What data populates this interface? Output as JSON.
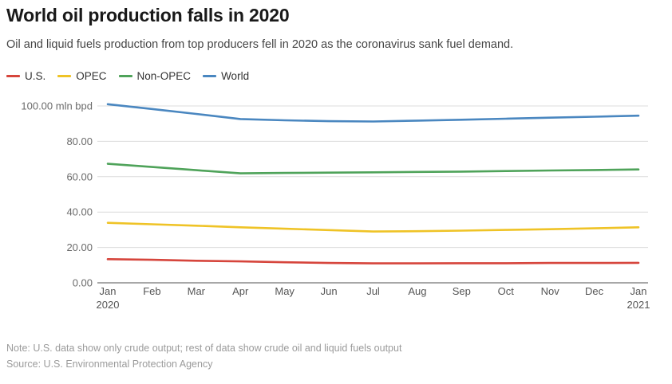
{
  "header": {
    "title": "World oil production falls in 2020",
    "subtitle": "Oil and liquid fuels production from top producers fell in 2020 as the coronavirus sank fuel demand."
  },
  "legend": [
    {
      "label": "U.S.",
      "color": "#d6453c"
    },
    {
      "label": "OPEC",
      "color": "#efc326"
    },
    {
      "label": "Non-OPEC",
      "color": "#4fa35a"
    },
    {
      "label": "World",
      "color": "#4a87c0"
    }
  ],
  "chart_data": {
    "type": "line",
    "title": "World oil production falls in 2020",
    "unit": "mln bpd",
    "categories": [
      "Jan",
      "Feb",
      "Mar",
      "Apr",
      "May",
      "Jun",
      "Jul",
      "Aug",
      "Sep",
      "Oct",
      "Nov",
      "Dec",
      "Jan"
    ],
    "year_labels": [
      "2020",
      "",
      "",
      "",
      "",
      "",
      "",
      "",
      "",
      "",
      "",
      "",
      "2021"
    ],
    "series": [
      {
        "name": "U.S.",
        "color": "#d6453c",
        "values": [
          13.4,
          13.0,
          12.5,
          12.1,
          11.6,
          11.2,
          11.0,
          11.0,
          11.1,
          11.1,
          11.2,
          11.2,
          11.3
        ]
      },
      {
        "name": "OPEC",
        "color": "#efc326",
        "values": [
          33.9,
          33.1,
          32.3,
          31.4,
          30.6,
          29.8,
          29.0,
          29.2,
          29.5,
          29.9,
          30.3,
          30.8,
          31.4
        ]
      },
      {
        "name": "Non-OPEC",
        "color": "#4fa35a",
        "values": [
          67.3,
          65.5,
          63.7,
          61.9,
          62.1,
          62.3,
          62.5,
          62.7,
          62.9,
          63.2,
          63.5,
          63.8,
          64.1
        ]
      },
      {
        "name": "World",
        "color": "#4a87c0",
        "values": [
          101.0,
          98.3,
          95.5,
          92.6,
          91.9,
          91.4,
          91.2,
          91.7,
          92.2,
          92.8,
          93.4,
          93.9,
          94.5
        ]
      }
    ],
    "y_ticks": [
      0,
      20,
      40,
      60,
      80,
      100
    ],
    "y_tick_labels": [
      "0.00",
      "20.00",
      "40.00",
      "60.00",
      "80.00",
      "100.00 mln bpd"
    ],
    "ylim": [
      0,
      105
    ],
    "grid": true,
    "legend_position": "top"
  },
  "footer": {
    "note": "Note: U.S. data show only crude output; rest of data show crude oil and liquid fuels output",
    "source": "Source: U.S. Environmental Protection Agency"
  }
}
